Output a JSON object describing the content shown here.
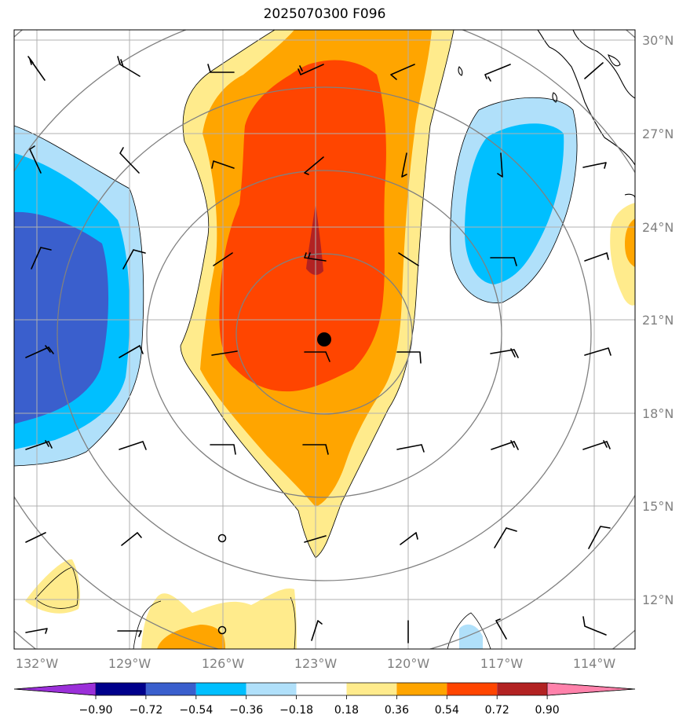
{
  "title": "2025070300 F096",
  "map": {
    "lon_range": [
      -133.0,
      -113.0
    ],
    "lat_range": [
      10.0,
      30.0
    ],
    "projection": "plate carree",
    "longitude_labels": [
      "132°W",
      "129°W",
      "126°W",
      "123°W",
      "120°W",
      "117°W",
      "114°W"
    ],
    "latitude_labels": [
      "30°N",
      "27°N",
      "24°N",
      "21°N",
      "18°N",
      "15°N",
      "12°N"
    ],
    "gridline_color": "#b0b0b0",
    "ring_color": "#808080",
    "storm_center": {
      "lon": -122.7,
      "lat": 20.4,
      "marker": "filled black circle"
    },
    "range_rings": "5 concentric circles centered near 123°W, 21°N"
  },
  "chart_data": {
    "type": "heatmap",
    "field": "filled contours with wind barbs",
    "contour_levels": [
      -0.9,
      -0.72,
      -0.54,
      -0.36,
      -0.18,
      0.18,
      0.36,
      0.54,
      0.72,
      0.9
    ],
    "colors": {
      "below_-0.90": "#9b30d9",
      "-0.90_-0.72": "#00008b",
      "-0.72_-0.54": "#3a5fcd",
      "-0.54_-0.36": "#00bfff",
      "-0.36_-0.18": "#b0e0fa",
      "-0.18_0.18": "#ffffff",
      "0.18_0.36": "#ffeb8c",
      "0.36_0.54": "#ffa500",
      "0.54_0.72": "#ff4500",
      "0.72_0.90": "#b22222",
      "above_0.90": "#ff82ab"
    },
    "colorbar_tick_labels": [
      "−0.90",
      "−0.72",
      "−0.54",
      "−0.36",
      "−0.18",
      "0.18",
      "0.36",
      "0.54",
      "0.72",
      "0.90"
    ],
    "features": [
      {
        "sign": "positive",
        "max_level": 0.9,
        "description": "north-south elongated maximum centered near 123°W, from about 13°N to 30°N"
      },
      {
        "sign": "negative",
        "max_level": -0.72,
        "description": "minimum along western edge near 132°W, 18°N–27°N"
      },
      {
        "sign": "negative",
        "max_level": -0.54,
        "description": "minimum near 117°W, 22°N–28°N"
      },
      {
        "sign": "positive",
        "max_level": 0.54,
        "description": "small maximum near 126°W, 10°N–12°N"
      },
      {
        "sign": "positive",
        "max_level": 0.54,
        "description": "small maximum at eastern edge near 113°W, 23°N"
      }
    ]
  }
}
